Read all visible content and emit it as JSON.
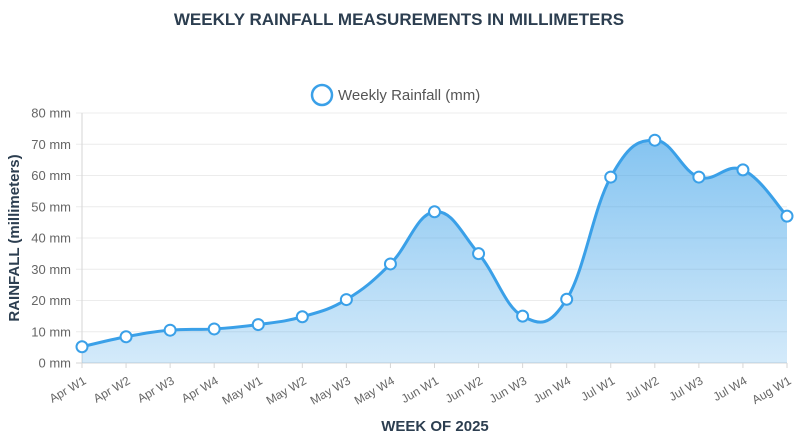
{
  "chart_data": {
    "type": "area",
    "title": "WEEKLY RAINFALL MEASUREMENTS IN MILLIMETERS",
    "xlabel": "WEEK OF 2025",
    "ylabel": "RAINFALL (millimeters)",
    "ylim": [
      0,
      80
    ],
    "y_ticks": [
      0,
      10,
      20,
      30,
      40,
      50,
      60,
      70,
      80
    ],
    "y_tick_labels": [
      "0 mm",
      "10 mm",
      "20 mm",
      "30 mm",
      "40 mm",
      "50 mm",
      "60 mm",
      "70 mm",
      "80 mm"
    ],
    "grid": true,
    "legend_position": "top-center",
    "categories": [
      "Apr W1",
      "Apr W2",
      "Apr W3",
      "Apr W4",
      "May W1",
      "May W2",
      "May W3",
      "May W4",
      "Jun W1",
      "Jun W2",
      "Jun W3",
      "Jun W4",
      "Jul W1",
      "Jul W2",
      "Jul W3",
      "Jul W4",
      "Aug W1"
    ],
    "series": [
      {
        "name": "Weekly Rainfall (mm)",
        "values": [
          5.2,
          8.4,
          10.5,
          10.9,
          12.3,
          14.8,
          20.3,
          31.7,
          48.4,
          35.0,
          15.0,
          20.4,
          59.5,
          71.3,
          59.5,
          61.8,
          47.0
        ],
        "color": "#3aa0e8"
      }
    ]
  }
}
